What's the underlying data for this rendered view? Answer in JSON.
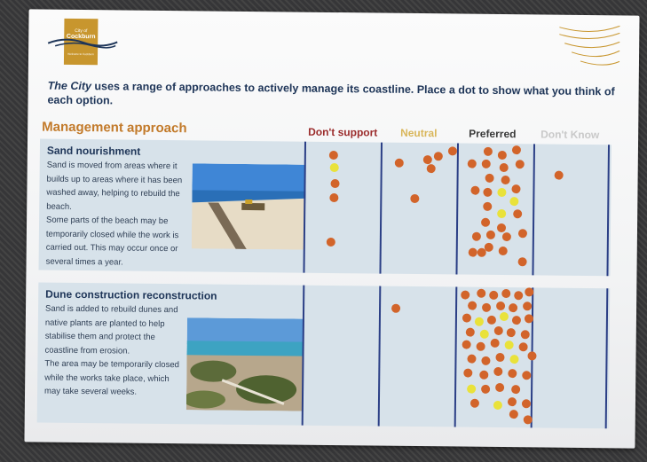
{
  "logo": {
    "city": "City of",
    "name": "Cockburn",
    "tagline": "Welcome to Cockburn"
  },
  "headline": {
    "part_italic": "The City",
    "part_rest": " uses a range of approaches to actively manage its coastline. Place a dot to show what you think of each option."
  },
  "section_title": "Management approach",
  "columns": [
    "Don't support",
    "Neutral",
    "Preferred",
    "Don't Know"
  ],
  "rows": [
    {
      "title": "Sand nourishment",
      "paragraphs": [
        "Sand is moved from areas where it builds up to areas where it has been washed away, helping to rebuild the beach.",
        "Some parts of the beach may be temporarily closed while the work is carried out. This may occur once or several times a year."
      ],
      "photo_icon": "beach-sand-nourishment-photo"
    },
    {
      "title": "Dune construction reconstruction",
      "paragraphs": [
        "Sand is added to rebuild dunes and native plants are planted to help stabilise them and protect the coastline from erosion.",
        "The area may be temporarily closed while the works take place, which may take several weeks."
      ],
      "photo_icon": "dune-coastline-photo"
    }
  ],
  "colors": {
    "navy": "#1e3558",
    "orange_heading": "#c27a2a",
    "dont_support": "#9b2c2c",
    "neutral": "#d9b65a",
    "preferred": "#3a3a3a",
    "dont_know": "#c9c9c9",
    "dot_orange": "#d2642a",
    "dot_yellow": "#e9e23a"
  }
}
